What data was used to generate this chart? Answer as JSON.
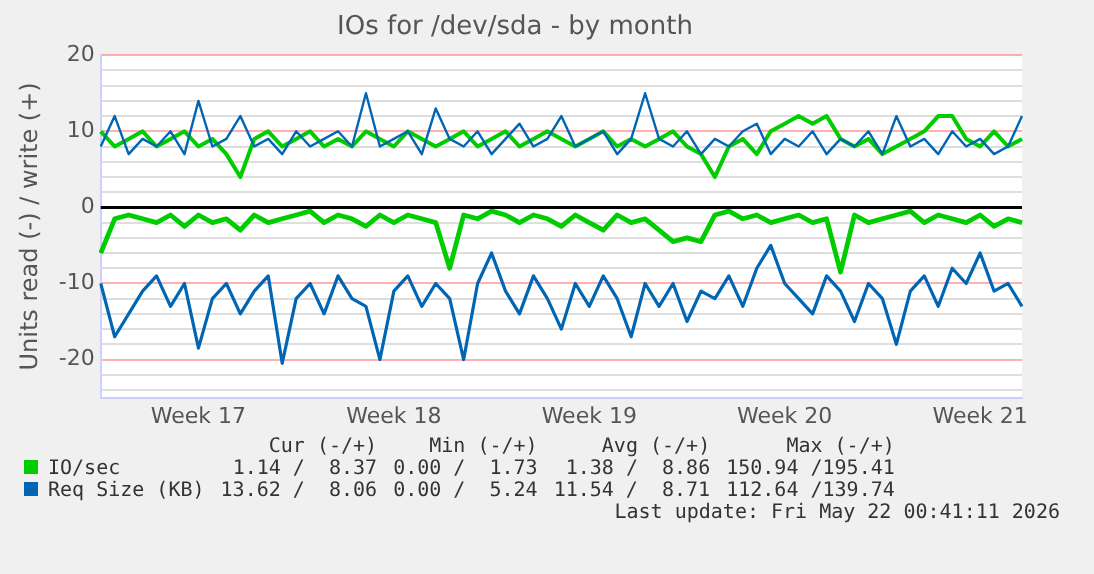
{
  "chart_data": {
    "type": "line",
    "title": "IOs for /dev/sda - by month",
    "ylabel": "Units read (-) / write (+)",
    "categories": [
      null,
      null,
      null,
      null,
      null,
      null,
      null,
      "Week 17",
      null,
      null,
      null,
      null,
      null,
      null,
      null,
      null,
      null,
      null,
      null,
      null,
      null,
      "Week 18",
      null,
      null,
      null,
      null,
      null,
      null,
      null,
      null,
      null,
      null,
      null,
      null,
      null,
      "Week 19",
      null,
      null,
      null,
      null,
      null,
      null,
      null,
      null,
      null,
      null,
      null,
      null,
      null,
      "Week 20",
      null,
      null,
      null,
      null,
      null,
      null,
      null,
      null,
      null,
      null,
      null,
      null,
      null,
      "Week 21",
      null,
      null,
      null
    ],
    "series": [
      {
        "name": "Req Size (KB)",
        "color": "#0066b3",
        "values": [
          8,
          12,
          7,
          9,
          8,
          10,
          7,
          14,
          8,
          9,
          12,
          8,
          9,
          7,
          10,
          8,
          9,
          10,
          8,
          15,
          8,
          9,
          10,
          7,
          13,
          9,
          8,
          10,
          7,
          9,
          11,
          8,
          9,
          12,
          8,
          9,
          10,
          7,
          9,
          15,
          9,
          8,
          10,
          7,
          9,
          8,
          10,
          11,
          7,
          9,
          8,
          10,
          7,
          9,
          8,
          10,
          7,
          12,
          8,
          9,
          7,
          10,
          8,
          9,
          7,
          8,
          12
        ]
      },
      {
        "color": "#0066b3",
        "values": [
          -10,
          -17,
          -14,
          -11,
          -9,
          -13,
          -10,
          -18.5,
          -12,
          -10,
          -14,
          -11,
          -9,
          -20.5,
          -12,
          -10,
          -14,
          -9,
          -12,
          -13,
          -20,
          -11,
          -9,
          -13,
          -10,
          -12,
          -20,
          -10,
          -6,
          -11,
          -14,
          -9,
          -12,
          -16,
          -10,
          -13,
          -9,
          -12,
          -17,
          -10,
          -13,
          -10,
          -15,
          -11,
          -12,
          -9,
          -13,
          -8,
          -5,
          -10,
          -12,
          -14,
          -9,
          -11,
          -15,
          -10,
          -12,
          -18,
          -11,
          -9,
          -13,
          -8,
          -10,
          -6,
          -11,
          -10,
          -13
        ]
      },
      {
        "name": "IO/sec",
        "color": "#00cc00",
        "values": [
          10,
          8,
          9,
          10,
          8,
          9,
          10,
          8,
          9,
          7,
          4,
          9,
          10,
          8,
          9,
          10,
          8,
          9,
          8,
          10,
          9,
          8,
          10,
          9,
          8,
          9,
          10,
          8,
          9,
          10,
          8,
          9,
          10,
          9,
          8,
          9,
          10,
          8,
          9,
          8,
          9,
          10,
          8,
          7,
          4,
          8,
          9,
          7,
          10,
          11,
          12,
          11,
          12,
          9,
          8,
          9,
          7,
          8,
          9,
          10,
          12,
          12,
          9,
          8,
          10,
          8,
          9
        ]
      },
      {
        "color": "#00cc00",
        "values": [
          -6,
          -1.5,
          -1,
          -1.5,
          -2,
          -1,
          -2.5,
          -1,
          -2,
          -1.5,
          -3,
          -1,
          -2,
          -1.5,
          -1,
          -0.5,
          -2,
          -1,
          -1.5,
          -2.5,
          -1,
          -2,
          -1,
          -1.5,
          -2,
          -8,
          -1,
          -1.5,
          -0.5,
          -1,
          -2,
          -1,
          -1.5,
          -2.5,
          -1,
          -2,
          -3,
          -1,
          -2,
          -1.5,
          -3,
          -4.5,
          -4,
          -4.5,
          -1,
          -0.5,
          -1.5,
          -1,
          -2,
          -1.5,
          -1,
          -2,
          -1.5,
          -8.5,
          -1,
          -2,
          -1.5,
          -1,
          -0.5,
          -2,
          -1,
          -1.5,
          -2,
          -1,
          -2.5,
          -1.5,
          -2
        ]
      }
    ],
    "ylim": [
      -25,
      20
    ],
    "yticks": [
      {
        "value": -24,
        "label": null
      },
      {
        "value": -22,
        "label": null
      },
      -20,
      {
        "value": -18,
        "label": null
      },
      {
        "value": -16,
        "label": null
      },
      {
        "value": -14,
        "label": null
      },
      {
        "value": -12,
        "label": null
      },
      -10,
      {
        "value": -8,
        "label": null
      },
      {
        "value": -6,
        "label": null
      },
      {
        "value": -4,
        "label": null
      },
      {
        "value": -2,
        "label": null
      },
      0,
      {
        "value": 2,
        "label": null
      },
      {
        "value": 4,
        "label": null
      },
      {
        "value": 6,
        "label": null
      },
      {
        "value": 8,
        "label": null
      },
      10,
      {
        "value": 12,
        "label": null
      },
      {
        "value": 14,
        "label": null
      },
      {
        "value": 16,
        "label": null
      },
      {
        "value": 18,
        "label": null
      },
      20
    ],
    "ref_lines": [
      {
        "axis": "y",
        "value": 0,
        "color": "#000000"
      }
    ],
    "grid": "y",
    "legend": "bottom",
    "marker": "none",
    "line_style": "solid",
    "annotations": [
      "Cur (-/+)",
      "Min (-/+)",
      "Avg (-/+)",
      "Max (-/+)",
      "13.62 /  8.06",
      "0.00 /  5.24",
      "11.54 /  8.71",
      "112.64 /139.74",
      "1.14 /  8.37",
      "0.00 /  1.73",
      "1.38 /  8.86",
      "150.94 /195.41",
      "Last update: Fri May 22 00:41:11 2026"
    ]
  }
}
